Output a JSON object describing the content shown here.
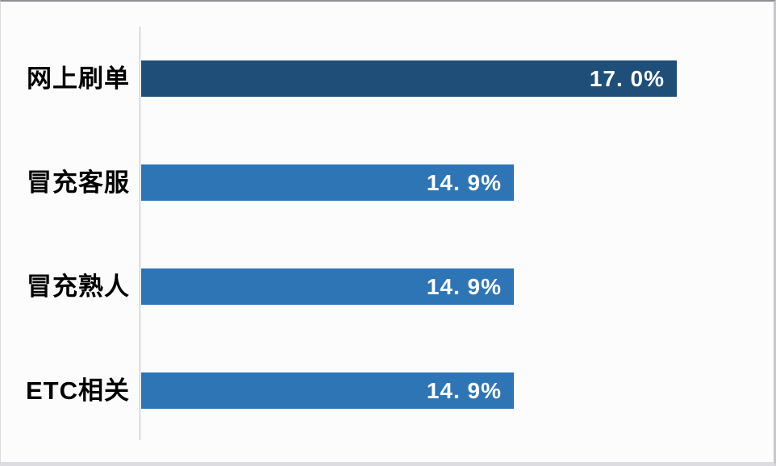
{
  "page": {
    "background": "#fcfcfd"
  },
  "chart_data": {
    "type": "bar",
    "orientation": "horizontal",
    "categories": [
      "网上刷单",
      "冒充客服",
      "冒充熟人",
      "ETC相关"
    ],
    "values": [
      17.0,
      14.9,
      14.9,
      14.9
    ],
    "value_labels": [
      "17. 0%",
      "14. 9%",
      "14. 9%",
      "14. 9%"
    ],
    "bar_colors": [
      "#1f4e79",
      "#2e75b6",
      "#2e75b6",
      "#2e75b6"
    ],
    "xlim": [
      10.1,
      18.06
    ],
    "grid": false,
    "legend": false,
    "axis_line_color": "#b7bcc2",
    "category_label_color": "#000000",
    "value_label_color": "#ffffff"
  }
}
